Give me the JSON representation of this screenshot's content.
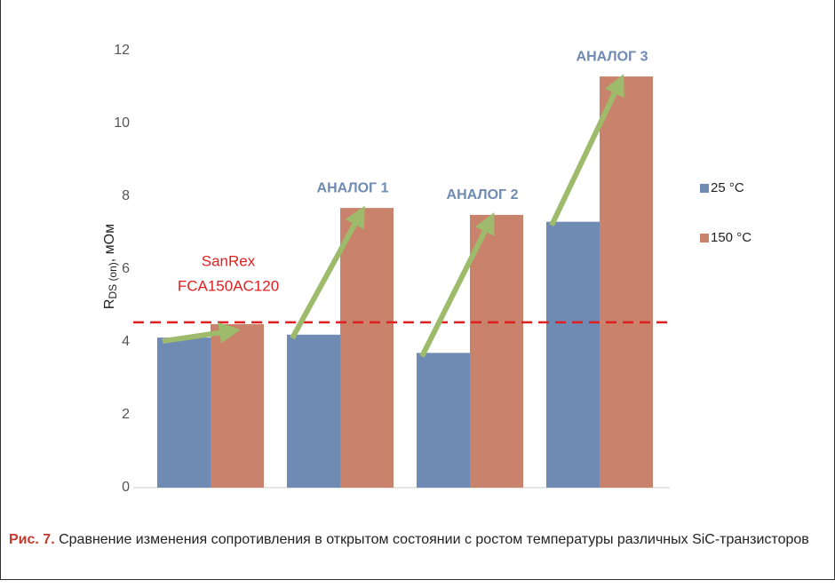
{
  "chart_data": {
    "type": "bar",
    "categories": [
      null,
      null,
      null,
      null
    ],
    "series": [
      {
        "name": "25 °C",
        "color": "#6f8bb3",
        "values": [
          4.12,
          4.2,
          3.7,
          7.3
        ]
      },
      {
        "name": "150 °C",
        "color": "#c9826b",
        "values": [
          4.49,
          7.68,
          7.49,
          11.29
        ]
      }
    ],
    "ylim": [
      0,
      12
    ],
    "yticks": [
      0,
      2,
      4,
      6,
      8,
      10,
      12
    ],
    "y_label": {
      "main": "R",
      "sub": "DS (on)",
      "unit": ", мОм"
    },
    "reference_line": {
      "value": 4.54,
      "color": "#e02020"
    },
    "annotations": [
      {
        "lines": [
          "SanRex",
          "FCA150AC120"
        ],
        "color": "#e02020"
      },
      {
        "lines": [
          "АНАЛОГ 1"
        ],
        "color": "#6f8bb3"
      },
      {
        "lines": [
          "АНАЛОГ 2"
        ],
        "color": "#6f8bb3"
      },
      {
        "lines": [
          "АНАЛОГ 3"
        ],
        "color": "#6f8bb3"
      }
    ],
    "legend": "right"
  },
  "caption": {
    "label": "Рис. 7.",
    "text": "Сравнение изменения сопротивления в открытом состоянии с ростом температуры различных SiC‑транзисторов"
  }
}
